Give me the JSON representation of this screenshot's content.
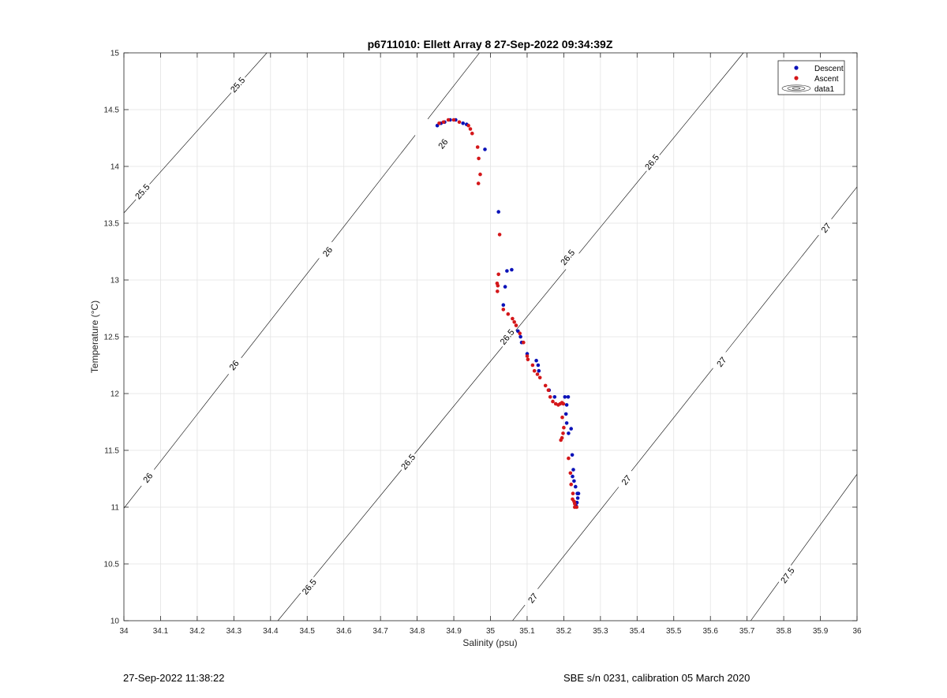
{
  "chart_data": {
    "type": "scatter",
    "title": "p6711010: Ellett Array 8 27-Sep-2022 09:34:39Z",
    "xlabel": "Salinity (psu)",
    "ylabel": "Temperature (°C)",
    "xlim": [
      34,
      36
    ],
    "ylim": [
      10,
      15
    ],
    "xticks": [
      "34",
      "34.1",
      "34.2",
      "34.3",
      "34.4",
      "34.5",
      "34.6",
      "34.7",
      "34.8",
      "34.9",
      "35",
      "35.1",
      "35.2",
      "35.3",
      "35.4",
      "35.5",
      "35.6",
      "35.7",
      "35.8",
      "35.9",
      "36"
    ],
    "yticks": [
      "10",
      "10.5",
      "11",
      "11.5",
      "12",
      "12.5",
      "13",
      "13.5",
      "14",
      "14.5",
      "15"
    ],
    "grid": true,
    "legend": {
      "placement": "top-right",
      "entries": [
        "Descent",
        "Ascent",
        "data1"
      ]
    },
    "colors": {
      "descent": "#0b12b8",
      "ascent": "#d4171a",
      "contour": "#000000",
      "grid": "#e3e3e3"
    },
    "contours": [
      {
        "label": "25.5",
        "points": [
          [
            34.0,
            13.59
          ],
          [
            34.39,
            15.0
          ]
        ],
        "label_at": [
          [
            34.05,
            13.78
          ],
          [
            34.31,
            14.72
          ]
        ]
      },
      {
        "label": "26",
        "points": [
          [
            34.0,
            10.99
          ],
          [
            34.97,
            15.0
          ]
        ],
        "label_at": [
          [
            34.065,
            11.26
          ],
          [
            34.3,
            12.25
          ],
          [
            34.555,
            13.25
          ],
          [
            34.87,
            14.2
          ]
        ]
      },
      {
        "label": "26.5",
        "points": [
          [
            34.42,
            10.0
          ],
          [
            35.69,
            15.0
          ]
        ],
        "label_at": [
          [
            34.505,
            10.3
          ],
          [
            34.775,
            11.4
          ],
          [
            35.045,
            12.5
          ],
          [
            35.44,
            14.04
          ],
          [
            35.21,
            13.2
          ]
        ]
      },
      {
        "label": "27",
        "points": [
          [
            35.06,
            10.0
          ],
          [
            36.0,
            13.82
          ]
        ],
        "label_at": [
          [
            35.115,
            10.2
          ],
          [
            35.37,
            11.24
          ],
          [
            35.63,
            12.28
          ],
          [
            35.915,
            13.46
          ]
        ]
      },
      {
        "label": "27.5",
        "points": [
          [
            35.71,
            10.0
          ],
          [
            36.0,
            11.29
          ]
        ],
        "label_at": [
          [
            35.81,
            10.4
          ]
        ]
      }
    ],
    "series": [
      {
        "name": "Descent",
        "points": [
          [
            34.855,
            14.36
          ],
          [
            34.865,
            14.38
          ],
          [
            34.875,
            14.39
          ],
          [
            34.89,
            14.41
          ],
          [
            34.905,
            14.41
          ],
          [
            34.925,
            14.38
          ],
          [
            34.935,
            14.37
          ],
          [
            34.985,
            14.15
          ],
          [
            35.022,
            13.6
          ],
          [
            35.045,
            13.08
          ],
          [
            35.058,
            13.09
          ],
          [
            35.04,
            12.94
          ],
          [
            35.035,
            12.78
          ],
          [
            35.075,
            12.55
          ],
          [
            35.082,
            12.5
          ],
          [
            35.085,
            12.45
          ],
          [
            35.1,
            12.35
          ],
          [
            35.125,
            12.29
          ],
          [
            35.13,
            12.25
          ],
          [
            35.132,
            12.2
          ],
          [
            35.16,
            12.03
          ],
          [
            35.175,
            11.97
          ],
          [
            35.203,
            11.97
          ],
          [
            35.212,
            11.97
          ],
          [
            35.208,
            11.9
          ],
          [
            35.206,
            11.82
          ],
          [
            35.208,
            11.74
          ],
          [
            35.22,
            11.69
          ],
          [
            35.213,
            11.65
          ],
          [
            35.223,
            11.46
          ],
          [
            35.226,
            11.33
          ],
          [
            35.224,
            11.27
          ],
          [
            35.228,
            11.23
          ],
          [
            35.232,
            11.18
          ],
          [
            35.237,
            11.12
          ],
          [
            35.24,
            11.12
          ],
          [
            35.238,
            11.08
          ],
          [
            35.236,
            11.04
          ],
          [
            35.234,
            11.01
          ]
        ]
      },
      {
        "name": "Ascent",
        "points": [
          [
            34.86,
            14.38
          ],
          [
            34.872,
            14.39
          ],
          [
            34.885,
            14.41
          ],
          [
            34.9,
            14.41
          ],
          [
            34.915,
            14.39
          ],
          [
            34.94,
            14.36
          ],
          [
            34.945,
            14.33
          ],
          [
            34.95,
            14.29
          ],
          [
            34.965,
            14.17
          ],
          [
            34.968,
            14.07
          ],
          [
            34.972,
            13.93
          ],
          [
            34.967,
            13.85
          ],
          [
            35.025,
            13.4
          ],
          [
            35.022,
            13.05
          ],
          [
            35.018,
            12.97
          ],
          [
            35.02,
            12.95
          ],
          [
            35.019,
            12.9
          ],
          [
            35.035,
            12.74
          ],
          [
            35.048,
            12.7
          ],
          [
            35.06,
            12.66
          ],
          [
            35.065,
            12.63
          ],
          [
            35.07,
            12.6
          ],
          [
            35.08,
            12.53
          ],
          [
            35.09,
            12.45
          ],
          [
            35.1,
            12.33
          ],
          [
            35.102,
            12.3
          ],
          [
            35.115,
            12.25
          ],
          [
            35.12,
            12.2
          ],
          [
            35.128,
            12.17
          ],
          [
            35.135,
            12.14
          ],
          [
            35.15,
            12.07
          ],
          [
            35.158,
            12.03
          ],
          [
            35.163,
            11.97
          ],
          [
            35.17,
            11.93
          ],
          [
            35.178,
            11.91
          ],
          [
            35.185,
            11.9
          ],
          [
            35.19,
            11.91
          ],
          [
            35.195,
            11.92
          ],
          [
            35.199,
            11.91
          ],
          [
            35.196,
            11.79
          ],
          [
            35.2,
            11.7
          ],
          [
            35.198,
            11.65
          ],
          [
            35.195,
            11.61
          ],
          [
            35.192,
            11.59
          ],
          [
            35.213,
            11.43
          ],
          [
            35.218,
            11.3
          ],
          [
            35.22,
            11.2
          ],
          [
            35.225,
            11.12
          ],
          [
            35.224,
            11.07
          ],
          [
            35.228,
            11.05
          ],
          [
            35.23,
            11.03
          ],
          [
            35.23,
            11.0
          ],
          [
            35.235,
            11.0
          ]
        ]
      }
    ]
  },
  "footer": {
    "timestamp": "27-Sep-2022 11:38:22",
    "instrument": "SBE s/n 0231, calibration 05 March 2020"
  }
}
